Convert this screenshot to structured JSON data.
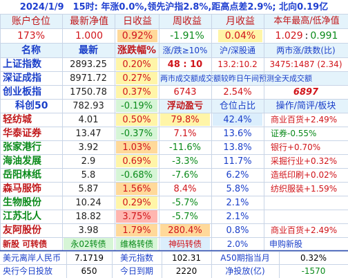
{
  "title": "2024/1/9　15时: 年涨0.0%,领先沪指2.8%,距高点差2.9%; 北向0.19亿",
  "account_header": [
    "账户仓位",
    "最新净值",
    "日收益",
    "周收益",
    "月收益",
    "本年最高/低净值"
  ],
  "account_values": {
    "position": "173%",
    "nav": "1.000",
    "day": "0.92%",
    "week": "-1.91%",
    "month": "0.04%",
    "year_high": "1.029",
    "sep": ":",
    "year_low": "0.991"
  },
  "index_header": [
    "名称",
    "最新",
    "涨跌幅%",
    "涨/跌≥10%",
    "沪/深股通",
    "两市涨/跌数(比)"
  ],
  "indices": [
    {
      "name": "上证指数",
      "price": "2893.25",
      "chg": "0.20%",
      "c4": "48 : 10",
      "c5": "13.2:10.2",
      "c6": "3475:1487 (2.34)"
    },
    {
      "name": "深证成指",
      "price": "8971.72",
      "chg": "0.27%",
      "note": "两市成交额成交额较昨日午间预测全天成交额"
    },
    {
      "name": "创业板指",
      "price": "1750.78",
      "chg": "0.37%",
      "c4": "6743",
      "c5": "2.54%",
      "c6": "6897"
    },
    {
      "name": "科创50",
      "price": "782.93",
      "chg": "-0.19%",
      "c4": "浮动盈亏",
      "c5": "仓位占比",
      "c6": "操作/简评/板块"
    }
  ],
  "holdings": [
    {
      "name": "轻纺城",
      "price": "4.01",
      "chg": "0.50%",
      "pnl": "79.8%",
      "pos": "42.4%",
      "note": "商业百货+2.49%"
    },
    {
      "name": "华泰证券",
      "price": "13.47",
      "chg": "-0.37%",
      "pnl": "7.1%",
      "pos": "13.6%",
      "note": "证券-0.55%"
    },
    {
      "name": "张家港行",
      "price": "3.92",
      "chg": "1.03%",
      "pnl": "-11.6%",
      "pos": "13.8%",
      "note": "银行+0.70%"
    },
    {
      "name": "海油发展",
      "price": "2.9",
      "chg": "0.69%",
      "pnl": "-3.3%",
      "pos": "11.7%",
      "note": "采掘行业+0.32%"
    },
    {
      "name": "岳阳林纸",
      "price": "5.8",
      "chg": "-0.68%",
      "pnl": "-7.6%",
      "pos": "6.2%",
      "note": "造纸印刷+0.02%"
    },
    {
      "name": "森马服饰",
      "price": "5.87",
      "chg": "1.56%",
      "pnl": "8.4%",
      "pos": "5.8%",
      "note": "纺织服装+1.59%"
    },
    {
      "name": "生物股份",
      "price": "10.24",
      "chg": "0.29%",
      "pnl": "-5.7%",
      "pos": "2.1%",
      "note": ""
    },
    {
      "name": "江苏北人",
      "price": "18.82",
      "chg": "3.75%",
      "pnl": "-5.7%",
      "pos": "2.1%",
      "note": ""
    },
    {
      "name": "友阿股份",
      "price": "3.98",
      "chg": "1.79%",
      "pnl": "280.4%",
      "pos": "0.8%",
      "note": "商业百货+2.49%"
    }
  ],
  "ipo_row": {
    "label": "新股 可转债",
    "c2": "永02转债",
    "c3": "维格转债",
    "c4": "神码转债",
    "c5": "2.0%",
    "c6": "申购新股"
  },
  "footer": {
    "row1": {
      "l1": "美元离岸人民币",
      "v1": "7.1719",
      "l2": "美元指数",
      "v2": "102.31",
      "l3": "A50期指当月",
      "v3": "0.32%"
    },
    "row2": {
      "l1": "央行今日投放",
      "v1": "650",
      "l2": "今日到期",
      "v2": "2220",
      "l3": "净投放(亿)",
      "v3": "-1570"
    }
  }
}
